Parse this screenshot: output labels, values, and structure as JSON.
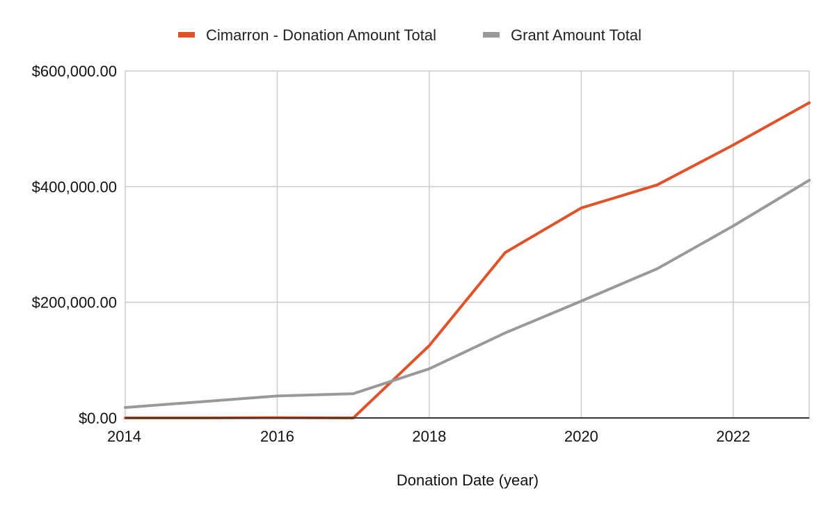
{
  "chart_data": {
    "type": "line",
    "title": "",
    "xlabel": "Donation Date (year)",
    "ylabel": "",
    "x": [
      2014,
      2015,
      2016,
      2017,
      2018,
      2019,
      2020,
      2021,
      2022,
      2023
    ],
    "xlim": [
      2014,
      2023
    ],
    "xticks": [
      2014,
      2016,
      2018,
      2020,
      2022
    ],
    "xtick_labels": [
      "2014",
      "2016",
      "2018",
      "2020",
      "2022"
    ],
    "ylim": [
      0,
      600000
    ],
    "yticks": [
      0,
      200000,
      400000,
      600000
    ],
    "ytick_labels": [
      "$0.00",
      "$200,000.00",
      "$400,000.00",
      "$600,000.00"
    ],
    "grid": true,
    "legend_position": "top",
    "series": [
      {
        "name": "Cimarron - Donation Amount Total",
        "color": "#e0522a",
        "values": [
          0,
          0,
          500,
          0,
          125000,
          286000,
          363000,
          403000,
          472000,
          545000
        ]
      },
      {
        "name": "Grant Amount Total",
        "color": "#999999",
        "values": [
          18000,
          28000,
          38000,
          42000,
          85000,
          147000,
          202000,
          258000,
          332000,
          411000
        ]
      }
    ]
  }
}
